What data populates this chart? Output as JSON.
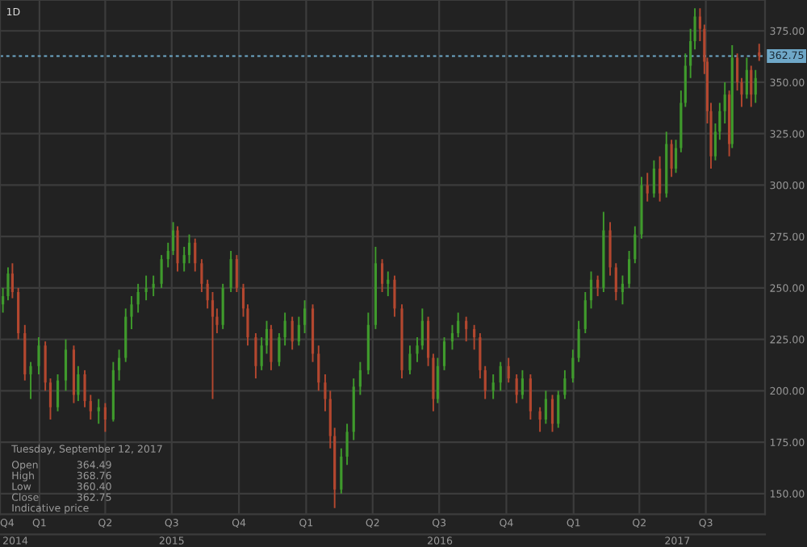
{
  "chart_data": {
    "type": "candlestick",
    "xlim": [
      "2014-11-08",
      "2017-09-20"
    ],
    "ylim": [
      140,
      390
    ],
    "yticks": [
      {
        "value": 150,
        "label": "150.00"
      },
      {
        "value": 175,
        "label": "175.00"
      },
      {
        "value": 200,
        "label": "200.00"
      },
      {
        "value": 225,
        "label": "225.00"
      },
      {
        "value": 250,
        "label": "250.00"
      },
      {
        "value": 275,
        "label": "275.00"
      },
      {
        "value": 300,
        "label": "300.00"
      },
      {
        "value": 325,
        "label": "325.00"
      },
      {
        "value": 350,
        "label": "350.00"
      },
      {
        "value": 375,
        "label": "375.00"
      }
    ],
    "xticks": [
      {
        "value": "2014-11-08",
        "label": "Q4"
      },
      {
        "value": "2015-01-01",
        "label": "Q1"
      },
      {
        "value": "2015-04-01",
        "label": "Q2"
      },
      {
        "value": "2015-07-01",
        "label": "Q3"
      },
      {
        "value": "2015-10-01",
        "label": "Q4"
      },
      {
        "value": "2016-01-01",
        "label": "Q1"
      },
      {
        "value": "2016-04-01",
        "label": "Q2"
      },
      {
        "value": "2016-07-01",
        "label": "Q3"
      },
      {
        "value": "2016-10-01",
        "label": "Q4"
      },
      {
        "value": "2017-01-01",
        "label": "Q1"
      },
      {
        "value": "2017-04-01",
        "label": "Q2"
      },
      {
        "value": "2017-07-01",
        "label": "Q3"
      }
    ],
    "x2lim": [
      "2014-11-08",
      "2017-09-20"
    ],
    "x2ticks": [
      {
        "value": "2014-11-29",
        "label": "2014"
      },
      {
        "value": "2015-07-01",
        "label": "2015"
      },
      {
        "value": "2016-07-02",
        "label": "2016"
      },
      {
        "value": "2017-05-23",
        "label": "2017"
      }
    ],
    "grid": true,
    "ref_lines": [
      {
        "axis": "y",
        "value": 362.75,
        "label": "362.75",
        "color": "#6fa8c8",
        "line_style": "dashed"
      }
    ],
    "annotations": [
      "1D",
      "Tuesday, September 12, 2017",
      "Open 364.49",
      "High 368.76",
      "Low 360.40",
      "Close 362.75",
      "Indicative price"
    ],
    "series": [
      {
        "color": "#3f9a2c",
        "x": [
          "2014-11-12",
          "2014-11-19",
          "2014-12-20",
          "2014-12-31",
          "2015-01-26",
          "2015-02-06",
          "2015-02-23",
          "2015-03-23",
          "2015-04-12",
          "2015-04-20",
          "2015-04-29",
          "2015-05-07",
          "2015-05-16",
          "2015-05-27",
          "2015-06-06",
          "2015-06-17",
          "2015-06-26",
          "2015-07-03",
          "2015-07-18",
          "2015-07-25",
          "2015-09-09",
          "2015-09-20",
          "2015-11-01",
          "2015-11-08",
          "2015-11-25",
          "2015-12-03",
          "2015-12-22",
          "2015-12-30",
          "2016-02-18",
          "2016-02-26",
          "2016-03-06",
          "2016-03-15",
          "2016-03-26",
          "2016-04-05",
          "2016-04-22",
          "2016-05-22",
          "2016-06-01",
          "2016-06-08",
          "2016-06-29",
          "2016-07-08",
          "2016-07-19",
          "2016-07-27",
          "2016-09-13",
          "2016-09-23",
          "2016-10-23",
          "2016-11-24",
          "2016-12-11",
          "2016-12-20",
          "2016-12-31",
          "2017-01-08",
          "2017-01-17",
          "2017-01-25",
          "2017-02-11",
          "2017-03-09",
          "2017-03-18",
          "2017-03-26",
          "2017-04-04",
          "2017-04-21",
          "2017-05-08",
          "2017-05-21",
          "2017-05-28",
          "2017-06-03",
          "2017-06-10",
          "2017-06-16",
          "2017-07-14",
          "2017-07-20",
          "2017-07-27",
          "2017-08-06",
          "2017-08-26",
          "2017-09-07"
        ],
        "ohlc": [
          [
            242,
            250,
            238,
            246
          ],
          [
            246,
            260,
            244,
            257
          ],
          [
            208,
            214,
            196,
            212
          ],
          [
            212,
            226,
            208,
            222
          ],
          [
            192,
            208,
            190,
            205
          ],
          [
            205,
            225,
            200,
            220
          ],
          [
            198,
            212,
            195,
            208
          ],
          [
            190,
            196,
            184,
            192
          ],
          [
            186,
            214,
            185,
            210
          ],
          [
            210,
            220,
            205,
            216
          ],
          [
            216,
            240,
            214,
            236
          ],
          [
            236,
            246,
            230,
            242
          ],
          [
            242,
            252,
            238,
            248
          ],
          [
            248,
            256,
            244,
            250
          ],
          [
            250,
            256,
            246,
            252
          ],
          [
            252,
            266,
            250,
            264
          ],
          [
            264,
            272,
            260,
            268
          ],
          [
            268,
            282,
            266,
            278
          ],
          [
            262,
            270,
            258,
            266
          ],
          [
            266,
            276,
            262,
            272
          ],
          [
            232,
            252,
            230,
            250
          ],
          [
            250,
            268,
            248,
            264
          ],
          [
            212,
            226,
            210,
            222
          ],
          [
            222,
            234,
            218,
            230
          ],
          [
            214,
            228,
            212,
            226
          ],
          [
            226,
            238,
            222,
            234
          ],
          [
            224,
            236,
            222,
            232
          ],
          [
            232,
            244,
            228,
            240
          ],
          [
            152,
            172,
            150,
            168
          ],
          [
            168,
            184,
            164,
            180
          ],
          [
            180,
            206,
            176,
            202
          ],
          [
            202,
            214,
            198,
            210
          ],
          [
            210,
            238,
            208,
            232
          ],
          [
            232,
            270,
            230,
            262
          ],
          [
            252,
            258,
            246,
            254
          ],
          [
            210,
            222,
            208,
            218
          ],
          [
            218,
            226,
            214,
            222
          ],
          [
            222,
            240,
            220,
            234
          ],
          [
            196,
            216,
            194,
            212
          ],
          [
            212,
            226,
            210,
            224
          ],
          [
            224,
            232,
            220,
            228
          ],
          [
            228,
            238,
            226,
            234
          ],
          [
            200,
            208,
            196,
            204
          ],
          [
            204,
            214,
            200,
            212
          ],
          [
            198,
            210,
            196,
            206
          ],
          [
            186,
            200,
            184,
            196
          ],
          [
            184,
            200,
            182,
            198
          ],
          [
            198,
            210,
            196,
            206
          ],
          [
            206,
            220,
            204,
            216
          ],
          [
            216,
            234,
            214,
            230
          ],
          [
            230,
            248,
            228,
            244
          ],
          [
            244,
            258,
            240,
            254
          ],
          [
            250,
            287,
            248,
            278
          ],
          [
            248,
            256,
            242,
            252
          ],
          [
            252,
            268,
            250,
            264
          ],
          [
            264,
            280,
            262,
            276
          ],
          [
            276,
            304,
            274,
            300
          ],
          [
            296,
            312,
            294,
            308
          ],
          [
            296,
            326,
            294,
            320
          ],
          [
            308,
            322,
            306,
            318
          ],
          [
            318,
            346,
            316,
            340
          ],
          [
            340,
            364,
            338,
            358
          ],
          [
            358,
            376,
            352,
            370
          ],
          [
            370,
            386,
            366,
            382
          ],
          [
            314,
            330,
            312,
            326
          ],
          [
            326,
            340,
            322,
            336
          ],
          [
            336,
            350,
            330,
            344
          ],
          [
            320,
            368,
            318,
            362
          ],
          [
            344,
            362,
            342,
            356
          ],
          [
            344,
            356,
            340,
            352
          ]
        ]
      },
      {
        "color": "#b3472f",
        "x": [
          "2014-11-25",
          "2014-12-03",
          "2014-12-12",
          "2015-01-09",
          "2015-01-16",
          "2015-02-17",
          "2015-03-04",
          "2015-03-12",
          "2015-04-01",
          "2015-07-09",
          "2015-08-02",
          "2015-08-11",
          "2015-08-19",
          "2015-08-26",
          "2015-09-01",
          "2015-09-28",
          "2015-10-07",
          "2015-10-13",
          "2015-10-24",
          "2015-11-14",
          "2015-12-13",
          "2016-01-10",
          "2016-01-18",
          "2016-01-27",
          "2016-02-03",
          "2016-02-09",
          "2016-04-14",
          "2016-05-01",
          "2016-05-11",
          "2016-06-16",
          "2016-06-23",
          "2016-08-07",
          "2016-08-18",
          "2016-08-26",
          "2016-09-02",
          "2016-10-04",
          "2016-10-15",
          "2016-11-03",
          "2016-11-16",
          "2016-12-03",
          "2017-02-03",
          "2017-02-20",
          "2017-02-28",
          "2017-04-12",
          "2017-04-29",
          "2017-05-15",
          "2017-06-23",
          "2017-06-29",
          "2017-07-03",
          "2017-07-08",
          "2017-08-02",
          "2017-08-13",
          "2017-08-19",
          "2017-09-01",
          "2017-09-12"
        ],
        "ohlc": [
          [
            257,
            262,
            245,
            248
          ],
          [
            248,
            250,
            225,
            228
          ],
          [
            228,
            232,
            205,
            208
          ],
          [
            222,
            224,
            200,
            204
          ],
          [
            204,
            206,
            186,
            192
          ],
          [
            220,
            222,
            194,
            198
          ],
          [
            208,
            210,
            192,
            195
          ],
          [
            195,
            198,
            186,
            190
          ],
          [
            192,
            194,
            180,
            186
          ],
          [
            278,
            280,
            258,
            262
          ],
          [
            272,
            274,
            258,
            262
          ],
          [
            262,
            264,
            248,
            252
          ],
          [
            252,
            254,
            240,
            244
          ],
          [
            244,
            248,
            196,
            236
          ],
          [
            236,
            240,
            228,
            232
          ],
          [
            264,
            266,
            248,
            250
          ],
          [
            250,
            252,
            236,
            240
          ],
          [
            240,
            242,
            222,
            226
          ],
          [
            226,
            228,
            206,
            212
          ],
          [
            230,
            232,
            210,
            214
          ],
          [
            234,
            236,
            220,
            224
          ],
          [
            240,
            242,
            214,
            218
          ],
          [
            218,
            222,
            200,
            204
          ],
          [
            204,
            208,
            190,
            196
          ],
          [
            196,
            200,
            172,
            178
          ],
          [
            178,
            182,
            143,
            152
          ],
          [
            262,
            264,
            248,
            252
          ],
          [
            254,
            256,
            236,
            240
          ],
          [
            240,
            242,
            206,
            210
          ],
          [
            234,
            236,
            212,
            216
          ],
          [
            216,
            218,
            190,
            196
          ],
          [
            234,
            236,
            224,
            230
          ],
          [
            230,
            232,
            220,
            226
          ],
          [
            226,
            228,
            206,
            210
          ],
          [
            210,
            212,
            196,
            200
          ],
          [
            212,
            216,
            204,
            206
          ],
          [
            206,
            208,
            194,
            198
          ],
          [
            206,
            208,
            186,
            190
          ],
          [
            190,
            192,
            180,
            186
          ],
          [
            196,
            198,
            180,
            184
          ],
          [
            254,
            256,
            246,
            250
          ],
          [
            278,
            282,
            256,
            260
          ],
          [
            260,
            262,
            244,
            248
          ],
          [
            300,
            306,
            292,
            296
          ],
          [
            308,
            314,
            292,
            296
          ],
          [
            320,
            322,
            304,
            308
          ],
          [
            382,
            386,
            370,
            376
          ],
          [
            376,
            378,
            354,
            360
          ],
          [
            360,
            362,
            330,
            336
          ],
          [
            336,
            340,
            308,
            314
          ],
          [
            344,
            346,
            314,
            320
          ],
          [
            362,
            364,
            346,
            350
          ],
          [
            350,
            352,
            338,
            344
          ],
          [
            356,
            358,
            338,
            344
          ],
          [
            364.49,
            368.76,
            360.4,
            362.75
          ]
        ]
      }
    ]
  }
}
